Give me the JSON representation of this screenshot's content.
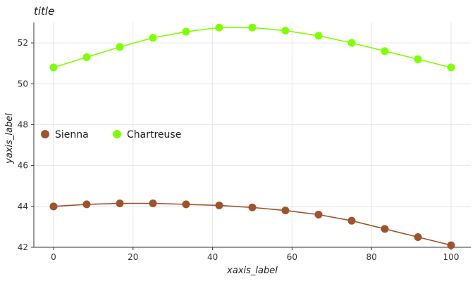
{
  "chart_data": {
    "type": "line",
    "title": "title",
    "xlabel": "xaxis_label",
    "ylabel": "yaxis_label",
    "xlim": [
      0,
      100
    ],
    "ylim": [
      42,
      53
    ],
    "x_ticks": [
      0,
      20,
      40,
      60,
      80,
      100
    ],
    "y_ticks": [
      42,
      44,
      46,
      48,
      50,
      52
    ],
    "grid": true,
    "legend_position": "left",
    "x": [
      0,
      8.33,
      16.67,
      25,
      33.33,
      41.67,
      50,
      58.33,
      66.67,
      75,
      83.33,
      91.67,
      100
    ],
    "series": [
      {
        "name": "Sienna",
        "color": "#A0522D",
        "values": [
          44.0,
          44.1,
          44.15,
          44.15,
          44.1,
          44.05,
          43.95,
          43.8,
          43.6,
          43.3,
          42.9,
          42.5,
          42.1
        ]
      },
      {
        "name": "Chartreuse",
        "color": "#7FFF00",
        "values": [
          50.8,
          51.3,
          51.8,
          52.25,
          52.55,
          52.75,
          52.75,
          52.6,
          52.35,
          52.0,
          51.6,
          51.2,
          50.8
        ]
      }
    ]
  }
}
